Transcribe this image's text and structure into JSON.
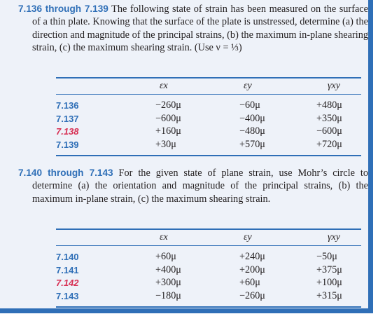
{
  "problem_a": {
    "number": "7.136 through 7.139",
    "text": "The following state of strain has been measured on the surface of a thin plate. Knowing that the surface of the plate is unstressed, determine (a) the direction and magnitude of the principal strains, (b) the maximum in-plane shearing strain, (c) the maximum shearing strain. (Use ν = ⅓)",
    "table": {
      "headers": [
        "εx",
        "εy",
        "γxy"
      ],
      "rows": [
        {
          "id": "7.136",
          "ex": "−260μ",
          "ey": "−60μ",
          "gxy": "+480μ",
          "highlight": false
        },
        {
          "id": "7.137",
          "ex": "−600μ",
          "ey": "−400μ",
          "gxy": "+350μ",
          "highlight": false
        },
        {
          "id": "7.138",
          "ex": "+160μ",
          "ey": "−480μ",
          "gxy": "−600μ",
          "highlight": true
        },
        {
          "id": "7.139",
          "ex": "+30μ",
          "ey": "+570μ",
          "gxy": "+720μ",
          "highlight": false
        }
      ]
    }
  },
  "problem_b": {
    "number": "7.140 through 7.143",
    "text": "For the given state of plane strain, use Mohr’s circle to determine (a) the orientation and magnitude of the principal strains, (b) the maximum in-plane strain, (c) the maximum shearing strain.",
    "table": {
      "headers": [
        "εx",
        "εy",
        "γxy"
      ],
      "rows": [
        {
          "id": "7.140",
          "ex": "+60μ",
          "ey": "+240μ",
          "gxy": "−50μ",
          "highlight": false
        },
        {
          "id": "7.141",
          "ex": "+400μ",
          "ey": "+200μ",
          "gxy": "+375μ",
          "highlight": false
        },
        {
          "id": "7.142",
          "ex": "+300μ",
          "ey": "+60μ",
          "gxy": "+100μ",
          "highlight": true
        },
        {
          "id": "7.143",
          "ex": "−180μ",
          "ey": "−260μ",
          "gxy": "+315μ",
          "highlight": false
        }
      ]
    }
  },
  "colors": {
    "accent": "#2f6fb7",
    "highlight": "#d72f53",
    "background": "#eef2f9"
  }
}
